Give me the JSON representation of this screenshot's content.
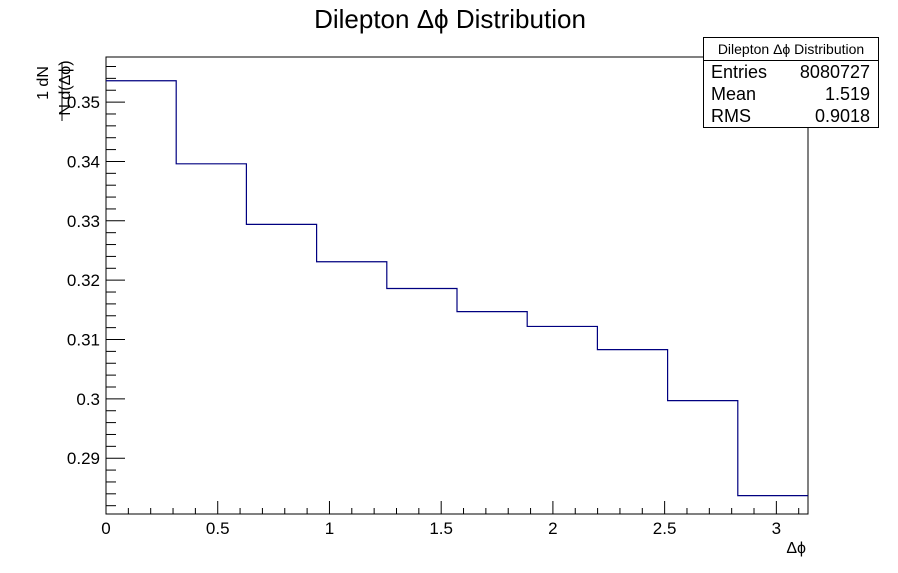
{
  "chart_data": {
    "type": "histogram",
    "title": "Dilepton Δϕ Distribution",
    "xlabel": "Δϕ",
    "ylabel_numerator": "1   dN",
    "ylabel_denominator": "N d(Δϕ)",
    "xlim": [
      0,
      3.1416
    ],
    "ylim": [
      0.2806,
      0.3576
    ],
    "bin_edges": [
      0,
      0.31416,
      0.62832,
      0.94248,
      1.25664,
      1.5708,
      1.88496,
      2.19911,
      2.51327,
      2.82743,
      3.14159
    ],
    "values": [
      0.3536,
      0.3396,
      0.3294,
      0.3231,
      0.3186,
      0.3147,
      0.3122,
      0.3083,
      0.2997,
      0.2837
    ],
    "xticks": [
      0,
      0.5,
      1,
      1.5,
      2,
      2.5,
      3
    ],
    "xtick_labels": [
      "0",
      "0.5",
      "1",
      "1.5",
      "2",
      "2.5",
      "3"
    ],
    "yticks": [
      0.29,
      0.3,
      0.31,
      0.32,
      0.33,
      0.34,
      0.35
    ],
    "ytick_labels": [
      "0.29",
      "0.3",
      "0.31",
      "0.32",
      "0.33",
      "0.34",
      "0.35"
    ],
    "line_color": "#000080",
    "grid": false,
    "stats_box": {
      "title": "Dilepton Δϕ Distribution",
      "entries_label": "Entries",
      "entries_value": "8080727",
      "mean_label": "Mean",
      "mean_value": "1.519",
      "rms_label": "RMS",
      "rms_value": "0.9018"
    }
  }
}
